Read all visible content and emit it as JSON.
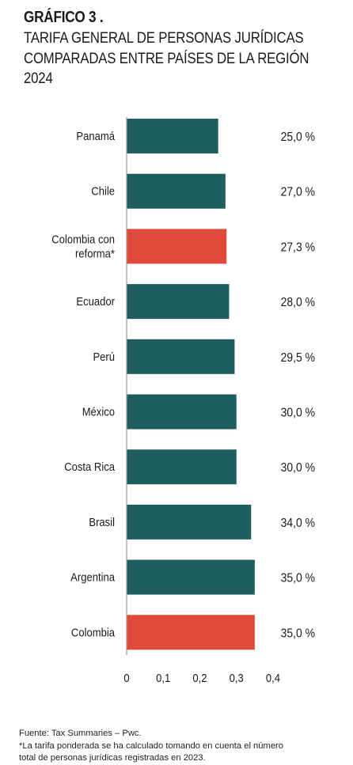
{
  "figure": {
    "number": "GRÁFICO 3 .",
    "title_lines": [
      "TARIFA GENERAL DE PERSONAS JURÍDICAS",
      "COMPARADAS ENTRE PAÍSES DE LA REGIÓN",
      "2024"
    ]
  },
  "chart_data": {
    "type": "bar",
    "orientation": "horizontal",
    "categories": [
      "Panamá",
      "Chile",
      "Colombia con reforma*",
      "Ecuador",
      "Perú",
      "México",
      "Costa Rica",
      "Brasil",
      "Argentina",
      "Colombia"
    ],
    "category_label_lines": [
      [
        "Panamá"
      ],
      [
        "Chile"
      ],
      [
        "Colombia con",
        "reforma*"
      ],
      [
        "Ecuador"
      ],
      [
        "Perú"
      ],
      [
        "México"
      ],
      [
        "Costa Rica"
      ],
      [
        "Brasil"
      ],
      [
        "Argentina"
      ],
      [
        "Colombia"
      ]
    ],
    "values": [
      0.25,
      0.27,
      0.273,
      0.28,
      0.295,
      0.3,
      0.3,
      0.34,
      0.35,
      0.35
    ],
    "data_labels": [
      "25,0 %",
      "27,0 %",
      "27,3 %",
      "28,0 %",
      "29,5 %",
      "30,0 %",
      "30,0 %",
      "34,0 %",
      "35,0 %",
      "35,0 %"
    ],
    "highlighted": [
      false,
      false,
      true,
      false,
      false,
      false,
      false,
      false,
      false,
      true
    ],
    "x_ticks": [
      "0",
      "0,1",
      "0,2",
      "0,3",
      "0,4"
    ],
    "x_tick_values": [
      0,
      0.1,
      0.2,
      0.3,
      0.4
    ],
    "xlim": [
      0,
      0.4
    ],
    "grid": false,
    "colors": {
      "default": "#1f5e5e",
      "highlight": "#e04a3a",
      "axis": "#9a9a9a"
    }
  },
  "footer": {
    "source": "Fuente: Tax Summaries – Pwc.",
    "note_lines": [
      "*La tarifa ponderada se ha calculado tomando en cuenta el número",
      "total de personas jurídicas registradas en 2023."
    ]
  }
}
